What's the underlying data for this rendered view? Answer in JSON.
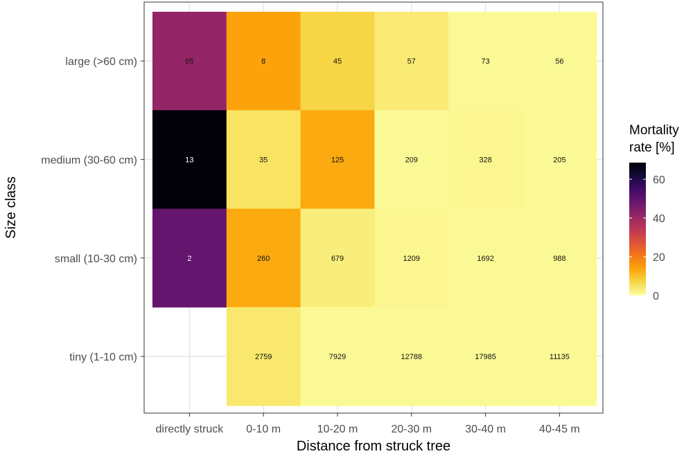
{
  "chart_data": {
    "type": "heatmap",
    "xlabel": "Distance from struck tree",
    "ylabel": "Size class",
    "x_categories": [
      "directly struck",
      "0-10 m",
      "10-20 m",
      "20-30 m",
      "30-40 m",
      "40-45 m"
    ],
    "y_categories": [
      "large (>60 cm)",
      "medium (30-60 cm)",
      "small (10-30 cm)",
      "tiny (1-10 cm)"
    ],
    "cell_labels": [
      [
        "65",
        "8",
        "45",
        "57",
        "73",
        "56"
      ],
      [
        "13",
        "35",
        "125",
        "209",
        "328",
        "205"
      ],
      [
        "2",
        "260",
        "679",
        "1209",
        "1692",
        "988"
      ],
      [
        null,
        "2759",
        "7929",
        "12788",
        "17985",
        "11135"
      ]
    ],
    "mortality_rate_percent": [
      [
        41,
        14,
        7,
        3.4,
        1,
        1
      ],
      [
        68,
        4.8,
        13,
        1,
        1.5,
        1
      ],
      [
        49,
        13,
        3,
        1.5,
        1,
        1
      ],
      [
        null,
        4,
        1,
        1,
        1,
        1
      ]
    ],
    "legend": {
      "title_lines": [
        "Mortality",
        "rate [%]"
      ],
      "ticks": [
        0,
        20,
        40,
        60
      ],
      "range": [
        0,
        68.6
      ],
      "colormap": "inferno (reversed)",
      "placement": "right"
    },
    "colors": {
      "stops": [
        "#fcffa4",
        "#f6d746",
        "#fca50a",
        "#f37819",
        "#dd513a",
        "#bc3754",
        "#932667",
        "#6a176e",
        "#420a68",
        "#160b39",
        "#000004"
      ],
      "panel_border": "#333333",
      "grid": "#ebebeb"
    },
    "grid": true
  }
}
